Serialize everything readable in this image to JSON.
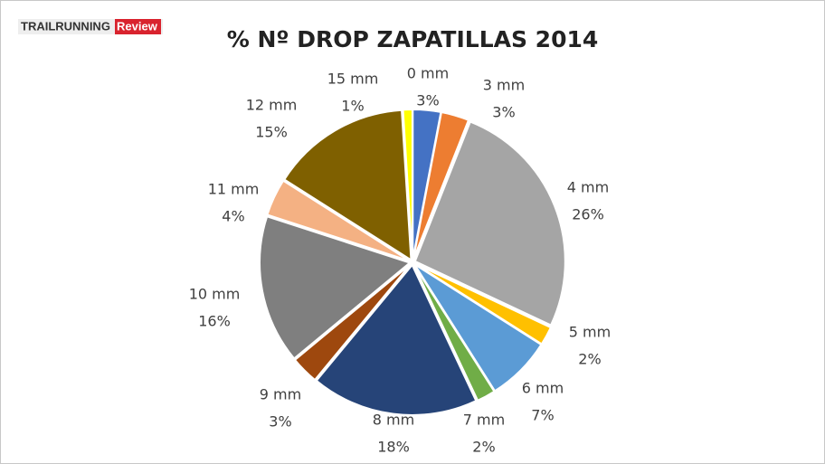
{
  "logo": {
    "text": "TRAILRUNNING",
    "accent": "Review"
  },
  "chart_data": {
    "type": "pie",
    "title": "% Nº DROP ZAPATILLAS 2014",
    "categories": [
      "0 mm",
      "3 mm",
      "4 mm",
      "5 mm",
      "6 mm",
      "7 mm",
      "8 mm",
      "9 mm",
      "10 mm",
      "11 mm",
      "12 mm",
      "15 mm"
    ],
    "values": [
      3,
      3,
      26,
      2,
      7,
      2,
      18,
      3,
      16,
      4,
      15,
      1
    ],
    "value_labels": [
      "3%",
      "3%",
      "26%",
      "2%",
      "7%",
      "2%",
      "18%",
      "3%",
      "16%",
      "4%",
      "15%",
      "1%"
    ],
    "colors": [
      "#4472c4",
      "#ed7d31",
      "#a5a5a5",
      "#ffc000",
      "#5b9bd5",
      "#70ad47",
      "#264478",
      "#9e480e",
      "#7f7f7f",
      "#f4b183",
      "#7f6000",
      "#ffff00"
    ]
  }
}
